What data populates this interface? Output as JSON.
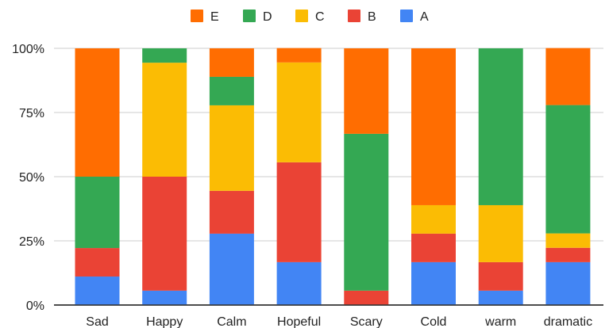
{
  "chart_data": {
    "type": "bar",
    "stacked": true,
    "normalized": true,
    "title": "",
    "xlabel": "",
    "ylabel": "",
    "categories": [
      "Sad",
      "Happy",
      "Calm",
      "Hopeful",
      "Scary",
      "Cold",
      "warm",
      "dramatic"
    ],
    "ylim": [
      0,
      100
    ],
    "yticks": [
      "0%",
      "25%",
      "50%",
      "75%",
      "100%"
    ],
    "grid": true,
    "legend_position": "top",
    "legend_order": [
      "E",
      "D",
      "C",
      "B",
      "A"
    ],
    "series": [
      {
        "name": "A",
        "color": "#4285f4",
        "values": [
          11.1,
          5.6,
          27.8,
          16.7,
          0,
          16.7,
          5.6,
          16.7
        ]
      },
      {
        "name": "B",
        "color": "#ea4335",
        "values": [
          11.1,
          44.4,
          16.7,
          38.9,
          5.6,
          11.1,
          11.1,
          5.6
        ]
      },
      {
        "name": "C",
        "color": "#fbbc04",
        "values": [
          0,
          44.4,
          33.3,
          38.9,
          0,
          11.1,
          22.2,
          5.6
        ]
      },
      {
        "name": "D",
        "color": "#34a853",
        "values": [
          27.8,
          5.6,
          11.1,
          0,
          61.1,
          0,
          61.1,
          50.0
        ]
      },
      {
        "name": "E",
        "color": "#ff6d01",
        "values": [
          50.0,
          0,
          11.1,
          5.6,
          33.3,
          61.1,
          0,
          22.2
        ]
      }
    ]
  }
}
